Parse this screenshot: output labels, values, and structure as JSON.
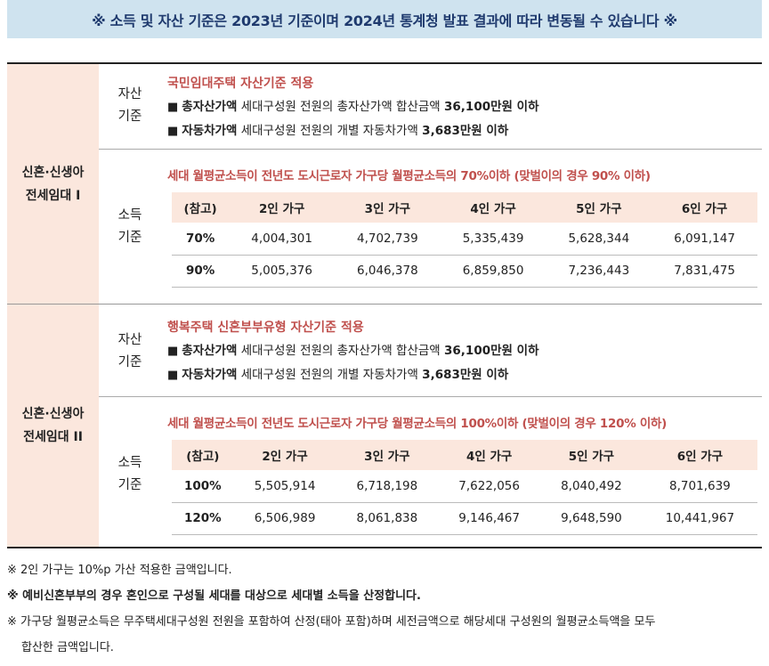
{
  "banner": "※ 소득 및 자산 기준은 2023년 기준이며 2024년 통계청 발표 결과에 따라 변동될 수 있습니다 ※",
  "sections": [
    {
      "category_line1": "신혼·신생아",
      "category_line2": "전세임대 I",
      "asset_label_1": "자산",
      "asset_label_2": "기준",
      "asset_title": "국민임대주택 자산기준 적용",
      "asset_total_key": "총자산가액",
      "asset_total_text": " 세대구성원 전원의 총자산가액 합산금액 ",
      "asset_total_value": "36,100만원 이하",
      "asset_car_key": "자동차가액",
      "asset_car_text": " 세대구성원 전원의 개별 자동차가액 ",
      "asset_car_value": "3,683만원 이하",
      "income_label_1": "소득",
      "income_label_2": "기준",
      "income_title": "세대 월평균소득이 전년도 도시근로자 가구당 월평균소득의 70%이하 (맞벌이의 경우 90% 이하)",
      "table_headers": [
        "(참고)",
        "2인 가구",
        "3인 가구",
        "4인 가구",
        "5인 가구",
        "6인 가구"
      ],
      "rows": [
        {
          "label": "70%",
          "values": [
            "4,004,301",
            "4,702,739",
            "5,335,439",
            "5,628,344",
            "6,091,147"
          ]
        },
        {
          "label": "90%",
          "values": [
            "5,005,376",
            "6,046,378",
            "6,859,850",
            "7,236,443",
            "7,831,475"
          ]
        }
      ]
    },
    {
      "category_line1": "신혼·신생아",
      "category_line2": "전세임대 II",
      "asset_label_1": "자산",
      "asset_label_2": "기준",
      "asset_title": "행복주택 신혼부부유형 자산기준 적용",
      "asset_total_key": "총자산가액",
      "asset_total_text": " 세대구성원 전원의 총자산가액 합산금액 ",
      "asset_total_value": "36,100만원 이하",
      "asset_car_key": "자동차가액",
      "asset_car_text": " 세대구성원 전원의 개별 자동차가액 ",
      "asset_car_value": "3,683만원 이하",
      "income_label_1": "소득",
      "income_label_2": "기준",
      "income_title": "세대 월평균소득이 전년도 도시근로자 가구당 월평균소득의 100%이하 (맞벌이의 경우 120% 이하)",
      "table_headers": [
        "(참고)",
        "2인 가구",
        "3인 가구",
        "4인 가구",
        "5인 가구",
        "6인 가구"
      ],
      "rows": [
        {
          "label": "100%",
          "values": [
            "5,505,914",
            "6,718,198",
            "7,622,056",
            "8,040,492",
            "8,701,639"
          ]
        },
        {
          "label": "120%",
          "values": [
            "6,506,989",
            "8,061,838",
            "9,146,467",
            "9,648,590",
            "10,441,967"
          ]
        }
      ]
    }
  ],
  "bullet": "■",
  "notes": [
    "※ 2인 가구는 10%p 가산 적용한 금액입니다.",
    "※ 예비신혼부부의 경우 혼인으로 구성될 세대를 대상으로 세대별 소득을 산정합니다.",
    "※ 가구당 월평균소득은 무주택세대구성원 전원을 포함하여 산정(태아 포함)하며 세전금액으로 해당세대 구성원의 월평균소득액을 모두",
    "합산한 금액입니다."
  ]
}
